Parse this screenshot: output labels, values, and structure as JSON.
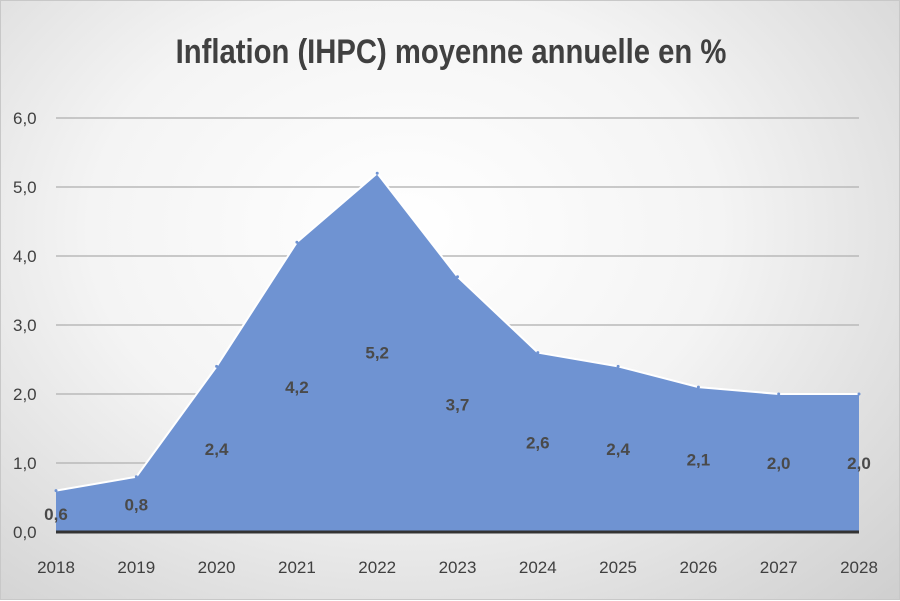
{
  "chart_data": {
    "type": "area",
    "title": "Inflation (IHPC) moyenne annuelle en %",
    "xlabel": "",
    "ylabel": "",
    "categories": [
      "2018",
      "2019",
      "2020",
      "2021",
      "2022",
      "2023",
      "2024",
      "2025",
      "2026",
      "2027",
      "2028"
    ],
    "series": [
      {
        "values": [
          0.6,
          0.8,
          2.4,
          4.2,
          5.2,
          3.7,
          2.6,
          2.4,
          2.1,
          2.0,
          2.0
        ],
        "data_labels": [
          "0,6",
          "0,8",
          "2,4",
          "4,2",
          "5,2",
          "3,7",
          "2,6",
          "2,4",
          "2,1",
          "2,0",
          "2,0"
        ],
        "color": "#6f93d2"
      }
    ],
    "ylim": [
      0,
      6
    ],
    "y_ticks": [
      "0,0",
      "1,0",
      "2,0",
      "3,0",
      "4,0",
      "5,0",
      "6,0"
    ],
    "grid": true,
    "legend": "none",
    "colors": {
      "area_fill": "#6f93d2",
      "area_outline": "#ffffff",
      "gridline": "#b9b9b9",
      "baseline": "#333333",
      "text": "#404040"
    }
  }
}
